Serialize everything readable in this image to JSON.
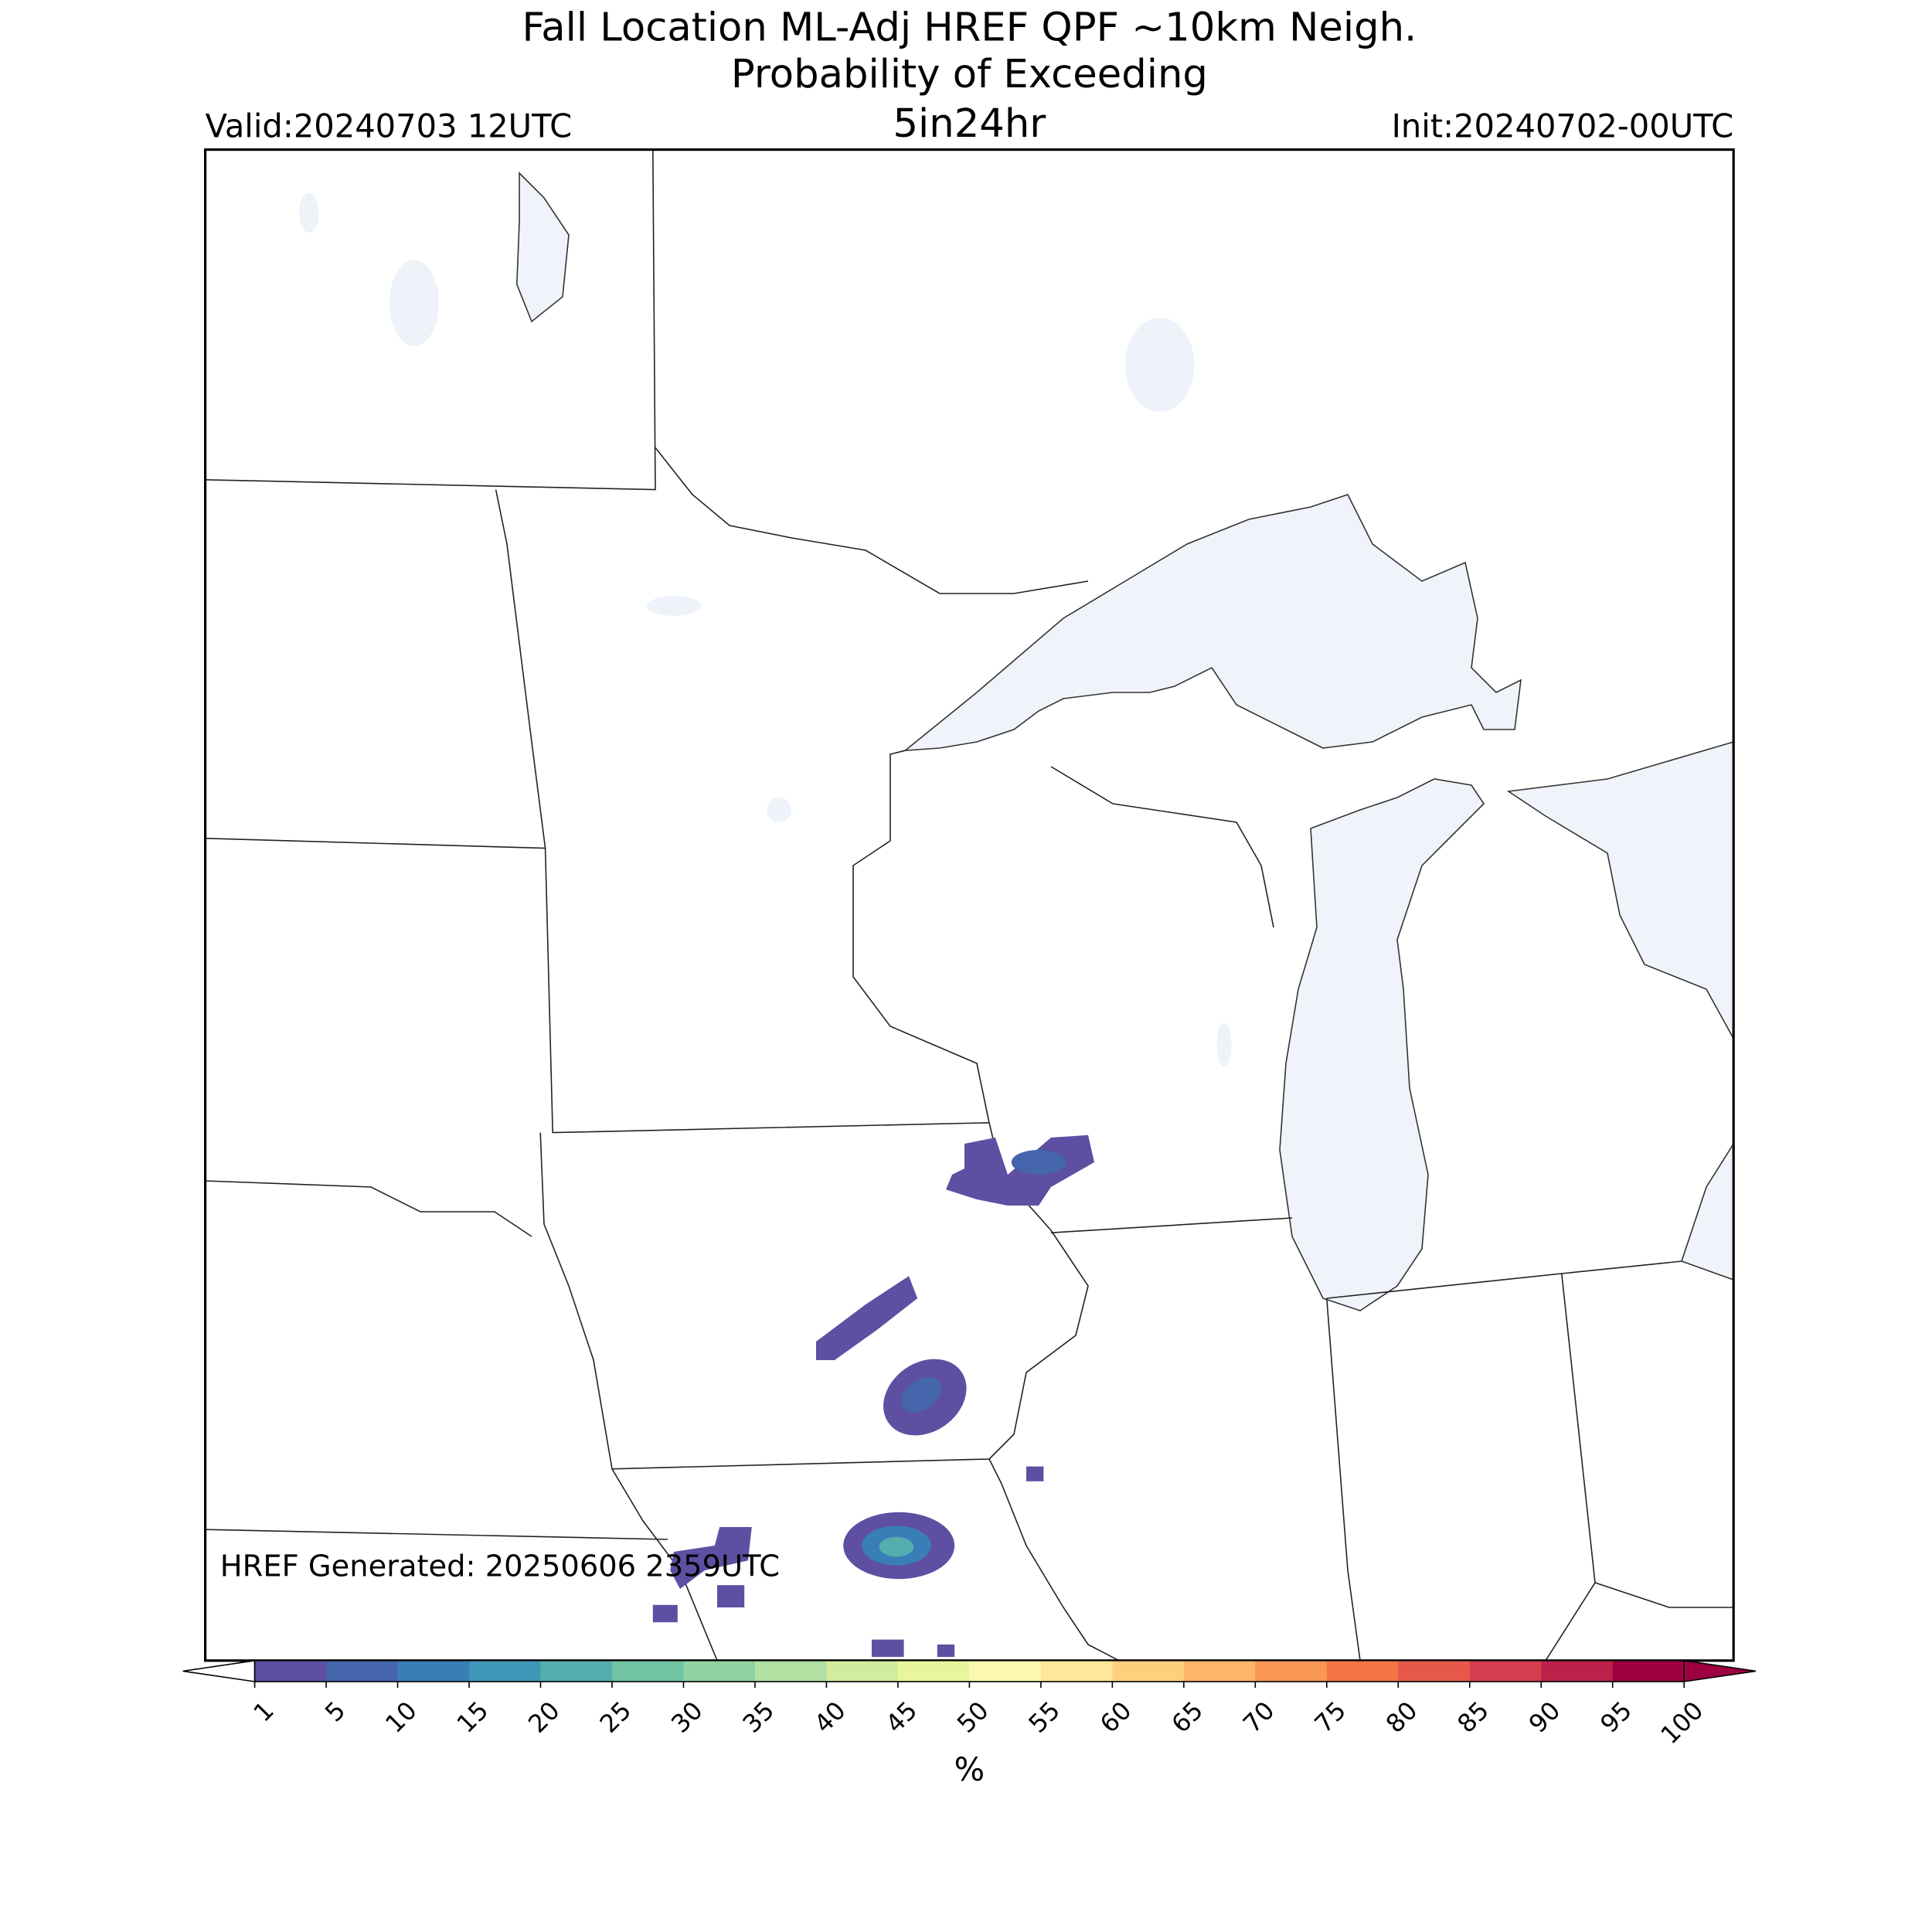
{
  "header": {
    "title_lines": [
      "Fall Location ML-Adj HREF QPF ~10km Neigh.",
      "Probability of Exceeding",
      "5in24hr"
    ],
    "valid": "Valid:20240703 12UTC",
    "init": "Init:20240702-00UTC"
  },
  "map": {
    "generated": "HREF Generated: 20250606 2359UTC"
  },
  "colorbar": {
    "ticks": [
      1,
      5,
      10,
      15,
      20,
      25,
      30,
      35,
      40,
      45,
      50,
      55,
      60,
      65,
      70,
      75,
      80,
      85,
      90,
      95,
      100
    ],
    "colors": [
      "#5e4fa2",
      "#4565ad",
      "#3a7eb8",
      "#3f97b7",
      "#54aead",
      "#71c4a4",
      "#91d1a4",
      "#b2dfa2",
      "#d0ec9c",
      "#e9f59d",
      "#fbf8b0",
      "#fee79a",
      "#fed07e",
      "#fdb567",
      "#fa9656",
      "#f47646",
      "#e65948",
      "#d53e4f",
      "#bb2249",
      "#9e0142"
    ],
    "under_color": "#ffffff",
    "over_color": "#9e0142",
    "label": "%"
  }
}
